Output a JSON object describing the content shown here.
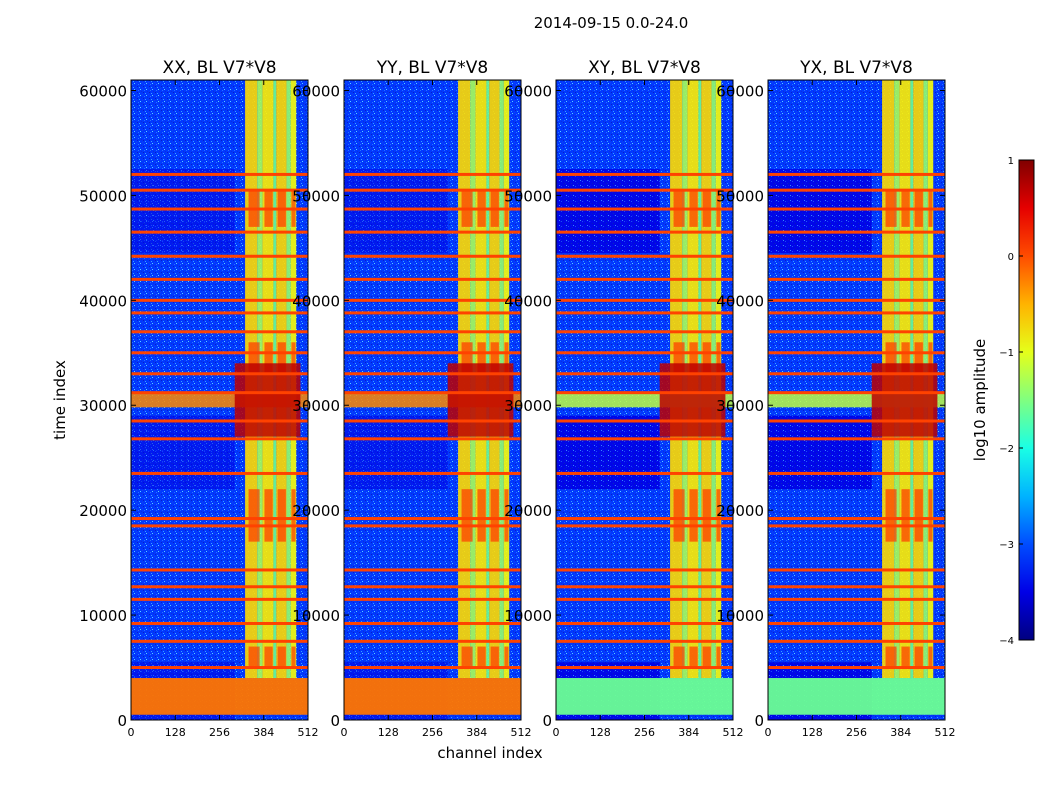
{
  "figure_title": "2014-09-15 0.0-24.0",
  "chart_data": {
    "type": "heatmap",
    "title": "2014-09-15 0.0-24.0",
    "xlabel": "channel index",
    "ylabel": "time index",
    "xlim": [
      0,
      512
    ],
    "ylim": [
      0,
      61000
    ],
    "x_ticks": [
      0,
      128,
      256,
      384,
      512
    ],
    "y_ticks": [
      0,
      10000,
      20000,
      30000,
      40000,
      50000,
      60000
    ],
    "panels": [
      {
        "name": "XX",
        "title": "XX, BL V7*V8",
        "bright_band_top": 4000
      },
      {
        "name": "YY",
        "title": "YY, BL V7*V8",
        "bright_band_top": 4000
      },
      {
        "name": "XY",
        "title": "XY, BL V7*V8",
        "bright_band_top": 4000
      },
      {
        "name": "YX",
        "title": "YX, BL V7*V8",
        "bright_band_top": 4000
      }
    ],
    "rfi_channel_range": [
      330,
      480
    ],
    "flagged_time_rows": [
      5000,
      7500,
      9200,
      11500,
      12700,
      14300,
      18500,
      19200,
      23500,
      26800,
      28500,
      31200,
      33000,
      35000,
      37000,
      38800,
      40000,
      42000,
      44200,
      46500,
      48700,
      50500,
      52000
    ],
    "strong_event_time": 30500,
    "colorbar": {
      "label": "log10 amplitude",
      "min": -4,
      "max": 1,
      "ticks": [
        1,
        0,
        -1,
        -2,
        -3,
        -4
      ],
      "colormap": "jet"
    }
  }
}
